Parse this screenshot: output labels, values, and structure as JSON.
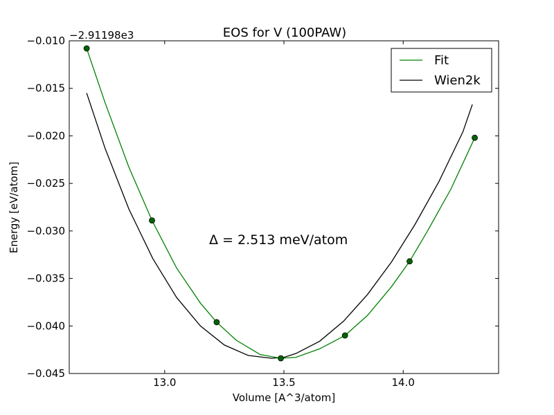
{
  "chart_data": {
    "type": "line",
    "title": "EOS for V (100PAW)",
    "xlabel": "Volume [A^3/atom]",
    "ylabel": "Energy [eV/atom]",
    "y_offset_label": "−2.91198e3",
    "annotation": "Δ = 2.513 meV/atom",
    "xlim": [
      12.6,
      14.4
    ],
    "ylim": [
      -0.045,
      -0.01
    ],
    "x_ticks": [
      13.0,
      13.5,
      14.0
    ],
    "x_tick_labels": [
      "13.0",
      "13.5",
      "14.0"
    ],
    "y_ticks": [
      -0.045,
      -0.04,
      -0.035,
      -0.03,
      -0.025,
      -0.02,
      -0.015,
      -0.01
    ],
    "y_tick_labels": [
      "−0.045",
      "−0.040",
      "−0.035",
      "−0.030",
      "−0.025",
      "−0.020",
      "−0.015",
      "−0.010"
    ],
    "grid": false,
    "legend_position": "top-right",
    "points": {
      "x": [
        12.673,
        12.947,
        13.218,
        13.487,
        13.756,
        14.027,
        14.3
      ],
      "y": [
        -0.0108,
        -0.0289,
        -0.0396,
        -0.0434,
        -0.041,
        -0.0332,
        -0.0202
      ],
      "color": "#006400"
    },
    "series": [
      {
        "name": "Fit",
        "color": "#008000",
        "x": [
          12.673,
          12.75,
          12.85,
          12.947,
          13.05,
          13.15,
          13.218,
          13.3,
          13.4,
          13.487,
          13.55,
          13.65,
          13.756,
          13.85,
          13.95,
          14.027,
          14.1,
          14.2,
          14.3
        ],
        "y": [
          -0.0108,
          -0.0165,
          -0.0233,
          -0.0289,
          -0.0339,
          -0.0376,
          -0.0396,
          -0.0415,
          -0.043,
          -0.0434,
          -0.0433,
          -0.0424,
          -0.041,
          -0.0389,
          -0.0359,
          -0.0332,
          -0.0301,
          -0.0256,
          -0.0202
        ]
      },
      {
        "name": "Wien2k",
        "color": "#000000",
        "x": [
          12.673,
          12.75,
          12.85,
          12.95,
          13.05,
          13.15,
          13.25,
          13.35,
          13.45,
          13.5,
          13.55,
          13.65,
          13.75,
          13.85,
          13.95,
          14.05,
          14.15,
          14.25,
          14.29
        ],
        "y": [
          -0.0155,
          -0.0213,
          -0.0277,
          -0.0329,
          -0.037,
          -0.04,
          -0.042,
          -0.0431,
          -0.0434,
          -0.0433,
          -0.0429,
          -0.0416,
          -0.0395,
          -0.0367,
          -0.0333,
          -0.0293,
          -0.0248,
          -0.0196,
          -0.0167
        ]
      }
    ]
  }
}
